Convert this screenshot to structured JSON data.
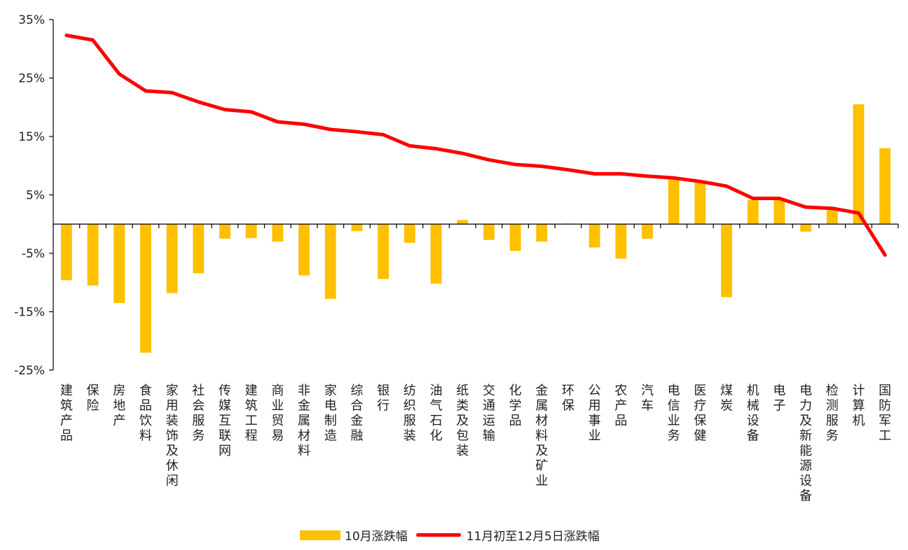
{
  "chart_data": {
    "type": "bar",
    "categories": [
      "建筑产品",
      "保险",
      "房地产",
      "食品饮料",
      "家用装饰及休闲",
      "社会服务",
      "传媒互联网",
      "建筑工程",
      "商业贸易",
      "非金属材料",
      "家电制造",
      "综合金融",
      "银行",
      "纺织服装",
      "油气石化",
      "纸类及包装",
      "交通运输",
      "化学品",
      "金属材料及矿业",
      "环保",
      "公用事业",
      "农产品",
      "汽车",
      "电信业务",
      "医疗保健",
      "煤炭",
      "机械设备",
      "电子",
      "电力及新能源设备",
      "检测服务",
      "计算机",
      "国防军工"
    ],
    "series": [
      {
        "name": "10月涨跌幅",
        "type": "bar",
        "color": "#FFC000",
        "values": [
          -9.6,
          -10.5,
          -13.5,
          -22.0,
          -11.8,
          -8.4,
          -2.5,
          -2.4,
          -3.0,
          -8.8,
          -12.8,
          -1.2,
          -9.4,
          -3.2,
          -10.2,
          0.7,
          -2.7,
          -4.6,
          -3.0,
          0.1,
          -4.0,
          -5.9,
          -2.5,
          7.8,
          7.2,
          -12.5,
          4.1,
          4.2,
          -1.3,
          2.5,
          20.5,
          13.0
        ]
      },
      {
        "name": "11月初至12月5日涨跌幅",
        "type": "line",
        "color": "#FF0000",
        "values": [
          32.3,
          31.5,
          25.7,
          22.8,
          22.5,
          20.9,
          19.6,
          19.2,
          17.5,
          17.1,
          16.2,
          15.8,
          15.3,
          13.4,
          12.9,
          12.1,
          11.0,
          10.2,
          9.9,
          9.3,
          8.6,
          8.6,
          8.2,
          7.9,
          7.3,
          6.5,
          4.4,
          4.4,
          2.9,
          2.7,
          1.9,
          -5.3
        ]
      }
    ],
    "yticks": [
      "35%",
      "25%",
      "15%",
      "5%",
      "-5%",
      "-15%",
      "-25%"
    ],
    "ylim": [
      -25,
      35
    ],
    "legend": "bottom-center",
    "grid": false
  },
  "legend": {
    "bar_label": "10月涨跌幅",
    "line_label": "11月初至12月5日涨跌幅"
  }
}
